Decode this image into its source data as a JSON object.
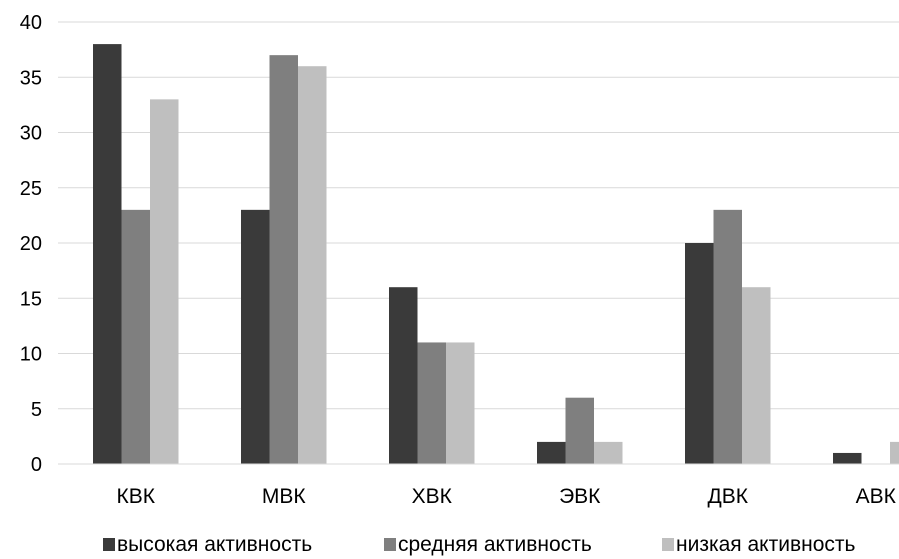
{
  "chart_data": {
    "type": "bar",
    "categories": [
      "КВК",
      "МВК",
      "ХВК",
      "ЭВК",
      "ДВК",
      "АВК"
    ],
    "series": [
      {
        "name": "высокая активность",
        "values": [
          38,
          23,
          16,
          2,
          20,
          1
        ],
        "color": "#3a3a3a"
      },
      {
        "name": "средняя активность",
        "values": [
          23,
          37,
          11,
          6,
          23,
          0
        ],
        "color": "#7f7f7f"
      },
      {
        "name": "низкая активность",
        "values": [
          33,
          36,
          11,
          2,
          16,
          2
        ],
        "color": "#bfbfbf"
      }
    ],
    "ylim": [
      0,
      40
    ],
    "yticks": [
      0,
      5,
      10,
      15,
      20,
      25,
      30,
      35,
      40
    ],
    "grid": true,
    "gridColor": "#d9d9d9",
    "legend": "bottom"
  }
}
